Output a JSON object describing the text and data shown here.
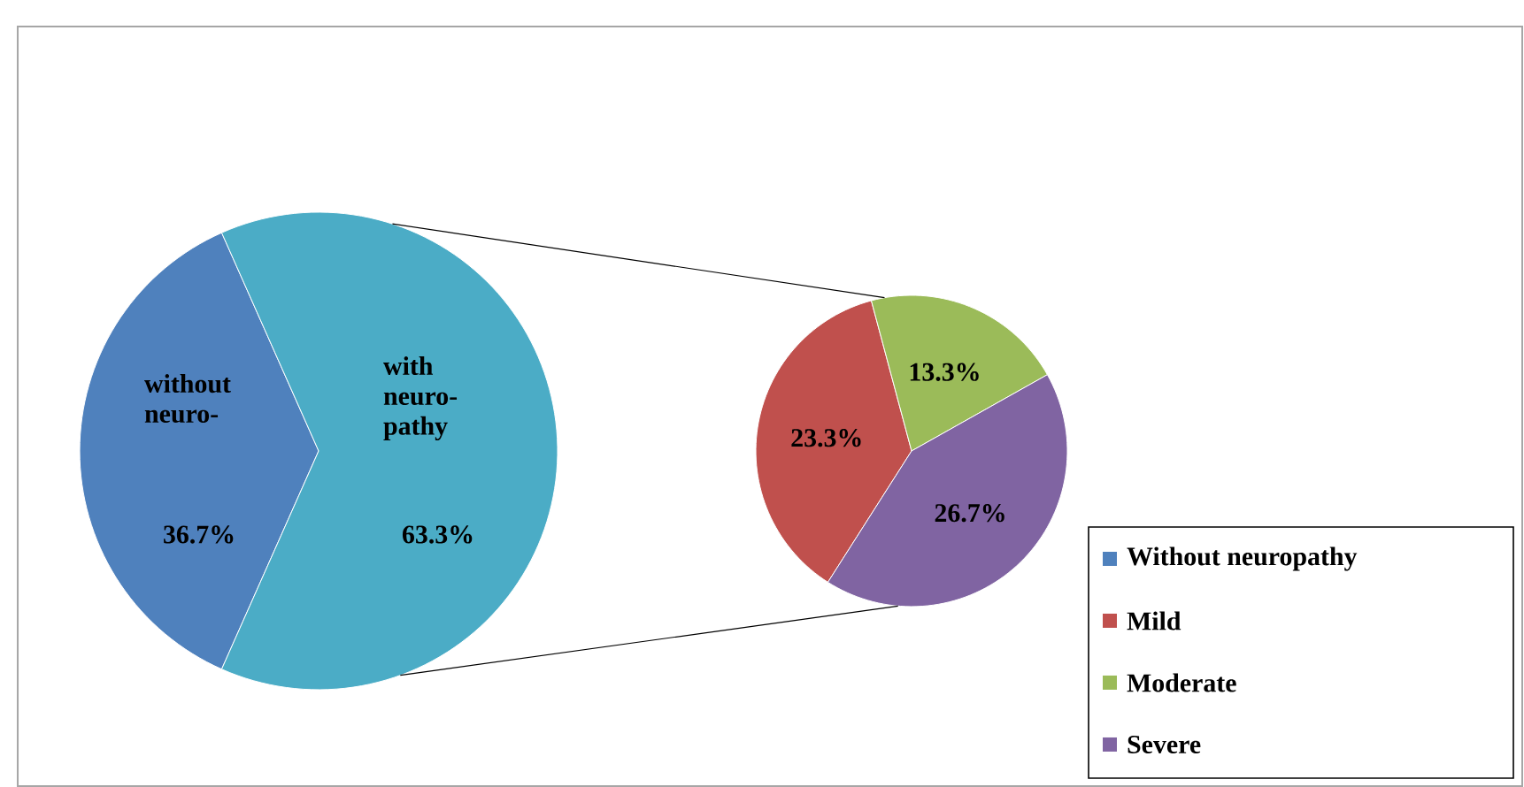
{
  "chart_data": [
    {
      "type": "pie",
      "categories": [
        "without neuro-",
        "with neuro-pathy"
      ],
      "values": [
        36.7,
        63.3
      ],
      "value_labels": [
        "36.7%",
        "63.3%"
      ],
      "colors": [
        "#4f81bd",
        "#4bacc6"
      ],
      "legend": false
    },
    {
      "type": "pie",
      "categories": [
        "Without neuropathy",
        "Mild",
        "Moderate",
        "Severe"
      ],
      "values": [
        null,
        23.3,
        13.3,
        26.7
      ],
      "value_labels": [
        null,
        "23.3%",
        "13.3%",
        "26.7%"
      ],
      "colors": [
        "#4f81bd",
        "#c0504d",
        "#9bbb59",
        "#8064a2"
      ],
      "legend": "bottom right"
    }
  ]
}
